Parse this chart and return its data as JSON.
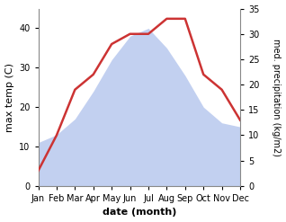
{
  "months": [
    "Jan",
    "Feb",
    "Mar",
    "Apr",
    "May",
    "Jun",
    "Jul",
    "Aug",
    "Sep",
    "Oct",
    "Nov",
    "Dec"
  ],
  "month_x": [
    1,
    2,
    3,
    4,
    5,
    6,
    7,
    8,
    9,
    10,
    11,
    12
  ],
  "max_temp": [
    11,
    13,
    17,
    24,
    32,
    38,
    40,
    35,
    28,
    20,
    16,
    15
  ],
  "precipitation": [
    3,
    10,
    19,
    22,
    28,
    30,
    30,
    33,
    33,
    22,
    19,
    13
  ],
  "temp_color": "#cc3333",
  "precip_fill_color": "#b8c8ee",
  "precip_fill_alpha": 0.85,
  "temp_linewidth": 1.8,
  "xlabel": "date (month)",
  "ylabel_left": "max temp (C)",
  "ylabel_right": "med. precipitation (kg/m2)",
  "ylim_left": [
    0,
    45
  ],
  "ylim_right": [
    0,
    35
  ],
  "yticks_left": [
    0,
    10,
    20,
    30,
    40
  ],
  "yticks_right": [
    0,
    5,
    10,
    15,
    20,
    25,
    30,
    35
  ],
  "bg_color": "#ffffff",
  "xlabel_fontsize": 8,
  "ylabel_left_fontsize": 8,
  "ylabel_right_fontsize": 7,
  "tick_labelsize": 7
}
